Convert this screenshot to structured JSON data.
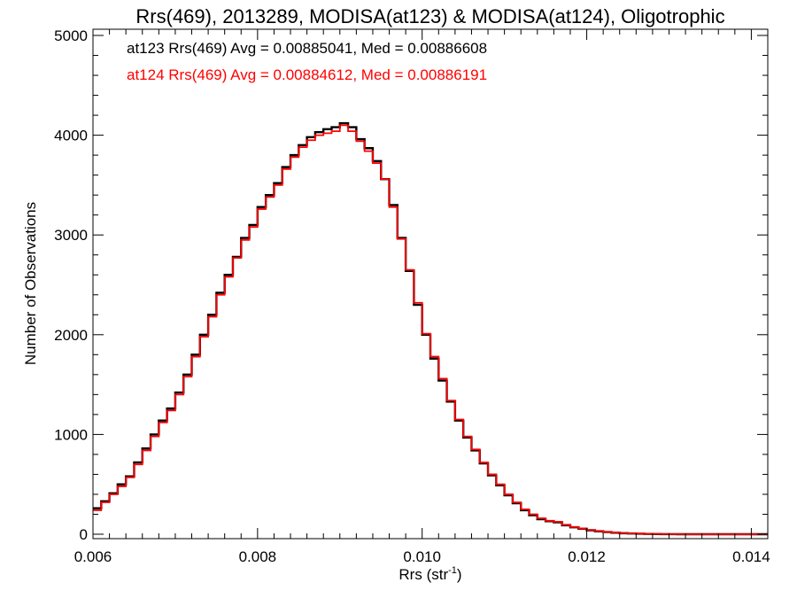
{
  "chart_data": {
    "type": "line",
    "title": "Rrs(469), 2013289, MODISA(at123) & MODISA(at124), Oligotrophic",
    "xlabel": "Rrs (str",
    "xlabel_sup": "-1",
    "xlabel_close": ")",
    "ylabel": "Number of Observations",
    "xlim": [
      0.006,
      0.0142
    ],
    "ylim": [
      0,
      5000
    ],
    "xticks": [
      {
        "value": 0.006,
        "label": "0.006"
      },
      {
        "value": 0.008,
        "label": "0.008"
      },
      {
        "value": 0.01,
        "label": "0.010"
      },
      {
        "value": 0.012,
        "label": "0.012"
      },
      {
        "value": 0.014,
        "label": "0.014"
      }
    ],
    "yticks": [
      {
        "value": 0,
        "label": "0"
      },
      {
        "value": 1000,
        "label": "1000"
      },
      {
        "value": 2000,
        "label": "2000"
      },
      {
        "value": 3000,
        "label": "3000"
      },
      {
        "value": 4000,
        "label": "4000"
      },
      {
        "value": 5000,
        "label": "5000"
      }
    ],
    "grid": false,
    "legend_position": "top-left",
    "step_style": "histogram",
    "series": [
      {
        "legend": "at123 Rrs(469) Avg = 0.00885041, Med = 0.00886608",
        "color": "#000000",
        "x": [
          0.006,
          0.0061,
          0.0062,
          0.0063,
          0.0064,
          0.0065,
          0.0066,
          0.0067,
          0.0068,
          0.0069,
          0.007,
          0.0071,
          0.0072,
          0.0073,
          0.0074,
          0.0075,
          0.0076,
          0.0077,
          0.0078,
          0.0079,
          0.008,
          0.0081,
          0.0082,
          0.0083,
          0.0084,
          0.0085,
          0.0086,
          0.0087,
          0.0088,
          0.0089,
          0.009,
          0.0091,
          0.0092,
          0.0093,
          0.0094,
          0.0095,
          0.0096,
          0.0097,
          0.0098,
          0.0099,
          0.01,
          0.0101,
          0.0102,
          0.0103,
          0.0104,
          0.0105,
          0.0106,
          0.0107,
          0.0108,
          0.0109,
          0.011,
          0.0111,
          0.0112,
          0.0113,
          0.0114,
          0.0115,
          0.0116,
          0.0117,
          0.0118,
          0.0119,
          0.012,
          0.0121,
          0.0122,
          0.0123,
          0.0124,
          0.0125,
          0.0126,
          0.0127,
          0.0128,
          0.0129,
          0.013,
          0.0131,
          0.0132,
          0.0133,
          0.0134,
          0.0135,
          0.0136,
          0.0137,
          0.0138,
          0.0139,
          0.014,
          0.0141
        ],
        "y": [
          260,
          330,
          410,
          500,
          580,
          720,
          860,
          1000,
          1140,
          1260,
          1420,
          1600,
          1800,
          2000,
          2200,
          2420,
          2600,
          2780,
          2970,
          3100,
          3280,
          3400,
          3520,
          3680,
          3800,
          3900,
          3980,
          4030,
          4060,
          4080,
          4120,
          4080,
          3960,
          3870,
          3740,
          3560,
          3300,
          2970,
          2640,
          2300,
          2000,
          1760,
          1540,
          1330,
          1140,
          970,
          840,
          710,
          590,
          490,
          390,
          310,
          240,
          190,
          150,
          130,
          120,
          90,
          70,
          55,
          40,
          30,
          22,
          15,
          10,
          7,
          5,
          3,
          2,
          1,
          1,
          0,
          0,
          0,
          0,
          0,
          0,
          0,
          0,
          0,
          0,
          0
        ]
      },
      {
        "legend": "at124 Rrs(469) Avg = 0.00884612, Med = 0.00886191",
        "color": "#ff0000",
        "x": [
          0.006,
          0.0061,
          0.0062,
          0.0063,
          0.0064,
          0.0065,
          0.0066,
          0.0067,
          0.0068,
          0.0069,
          0.007,
          0.0071,
          0.0072,
          0.0073,
          0.0074,
          0.0075,
          0.0076,
          0.0077,
          0.0078,
          0.0079,
          0.008,
          0.0081,
          0.0082,
          0.0083,
          0.0084,
          0.0085,
          0.0086,
          0.0087,
          0.0088,
          0.0089,
          0.009,
          0.0091,
          0.0092,
          0.0093,
          0.0094,
          0.0095,
          0.0096,
          0.0097,
          0.0098,
          0.0099,
          0.01,
          0.0101,
          0.0102,
          0.0103,
          0.0104,
          0.0105,
          0.0106,
          0.0107,
          0.0108,
          0.0109,
          0.011,
          0.0111,
          0.0112,
          0.0113,
          0.0114,
          0.0115,
          0.0116,
          0.0117,
          0.0118,
          0.0119,
          0.012,
          0.0121,
          0.0122,
          0.0123,
          0.0124,
          0.0125,
          0.0126,
          0.0127,
          0.0128,
          0.0129,
          0.013,
          0.0131,
          0.0132,
          0.0133,
          0.0134,
          0.0135,
          0.0136,
          0.0137,
          0.0138,
          0.0139,
          0.014,
          0.0141
        ],
        "y": [
          240,
          320,
          400,
          480,
          570,
          700,
          840,
          980,
          1120,
          1240,
          1400,
          1580,
          1780,
          1980,
          2180,
          2400,
          2580,
          2770,
          2950,
          3080,
          3260,
          3380,
          3500,
          3660,
          3780,
          3880,
          3950,
          4000,
          4020,
          4040,
          4100,
          4040,
          3940,
          3840,
          3720,
          3560,
          3280,
          2960,
          2650,
          2320,
          2010,
          1780,
          1560,
          1340,
          1150,
          980,
          850,
          720,
          600,
          500,
          400,
          320,
          250,
          200,
          160,
          135,
          125,
          95,
          72,
          57,
          42,
          32,
          24,
          17,
          11,
          8,
          6,
          4,
          3,
          2,
          1,
          1,
          0,
          0,
          0,
          0,
          0,
          0,
          0,
          0,
          0,
          0
        ]
      }
    ]
  }
}
